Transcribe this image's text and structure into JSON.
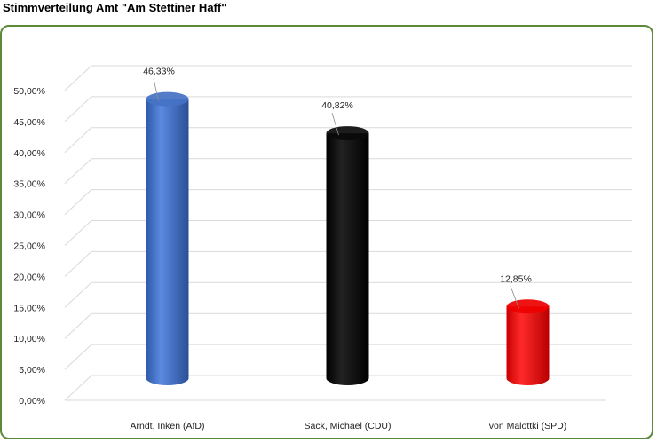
{
  "title": "Stimmverteilung Amt \"Am Stettiner Haff\"",
  "chart_data": {
    "type": "bar",
    "style": "3d-cylinder",
    "categories": [
      "Arndt, Inken (AfD)",
      "Sack, Michael (CDU)",
      "von Malottki (SPD)"
    ],
    "values": [
      46.33,
      40.82,
      12.85
    ],
    "value_labels": [
      "46,33%",
      "40,82%",
      "12,85%"
    ],
    "colors": [
      "#4472c4",
      "#0a0a0a",
      "#ee0000"
    ],
    "ylim": [
      0,
      50
    ],
    "yticks": [
      "0,00%",
      "5,00%",
      "10,00%",
      "15,00%",
      "20,00%",
      "25,00%",
      "30,00%",
      "35,00%",
      "40,00%",
      "45,00%",
      "50,00%"
    ],
    "grid": true,
    "xlabel": "",
    "ylabel": ""
  }
}
